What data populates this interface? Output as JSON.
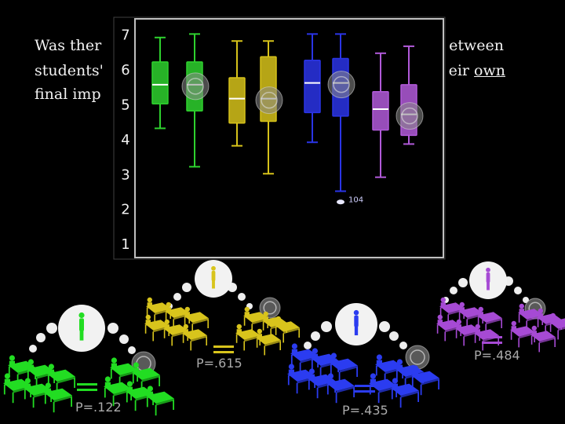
{
  "question": {
    "line1_left": "Was ther",
    "line1_right": "etween",
    "line2_left": "students'",
    "line2_right_a": "eir",
    "line2_right_b": "own",
    "line3_left": "final imp"
  },
  "chart_data": {
    "type": "box",
    "y_ticks": [
      "1",
      "2",
      "3",
      "4",
      "5",
      "6",
      "7"
    ],
    "ylim": [
      0.6,
      7.3
    ],
    "outlier_label": "104",
    "boxes": [
      {
        "color": "#2ed12e",
        "min": 4.3,
        "q1": 5.0,
        "median": 5.55,
        "q3": 6.2,
        "max": 6.9,
        "marker": false
      },
      {
        "color": "#2ed12e",
        "min": 3.2,
        "q1": 4.8,
        "median": 5.55,
        "q3": 6.2,
        "max": 7.0,
        "marker": true
      },
      {
        "color": "#d6c21a",
        "min": 3.8,
        "q1": 4.45,
        "median": 5.15,
        "q3": 5.75,
        "max": 6.8,
        "marker": false
      },
      {
        "color": "#d6c21a",
        "min": 3.0,
        "q1": 4.5,
        "median": 5.15,
        "q3": 6.35,
        "max": 6.8,
        "marker": true
      },
      {
        "color": "#2a34e6",
        "min": 3.9,
        "q1": 4.75,
        "median": 5.6,
        "q3": 6.25,
        "max": 7.0,
        "marker": false
      },
      {
        "color": "#2a34e6",
        "min": 2.5,
        "q1": 4.65,
        "median": 5.6,
        "q3": 6.3,
        "max": 7.0,
        "marker": true,
        "outlier": 2.1
      },
      {
        "color": "#b15ad9",
        "min": 2.9,
        "q1": 4.25,
        "median": 4.85,
        "q3": 5.35,
        "max": 6.45,
        "marker": false
      },
      {
        "color": "#b15ad9",
        "min": 3.85,
        "q1": 4.1,
        "median": 4.7,
        "q3": 5.55,
        "max": 6.65,
        "marker": true
      }
    ]
  },
  "groups": [
    {
      "color": "#22dd22",
      "p_value": "P=.122"
    },
    {
      "color": "#d8c41c",
      "p_value": "P=.615"
    },
    {
      "color": "#2b3cf0",
      "p_value": "P=.435"
    },
    {
      "color": "#a64ad4",
      "p_value": "P=.484"
    }
  ]
}
